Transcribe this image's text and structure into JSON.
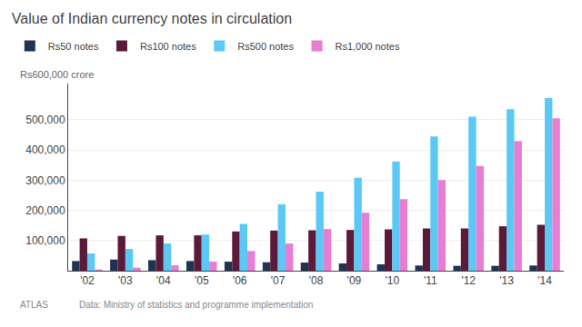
{
  "chart_data": {
    "type": "bar",
    "title": "Value of Indian currency notes in circulation",
    "ylabel": "Rs600,000 crore",
    "annotations": [
      "ATLAS",
      "Data: Ministry of statistics and programme implementation"
    ],
    "categories": [
      "'02",
      "'03",
      "'04",
      "'05",
      "'06",
      "'07",
      "'08",
      "'09",
      "'10",
      "'11",
      "'12",
      "'13",
      "'14"
    ],
    "series": [
      {
        "name": "Rs50 notes",
        "color": "#1f3352",
        "values": [
          32000,
          37000,
          35000,
          32000,
          30000,
          28000,
          27000,
          24000,
          21000,
          17000,
          16000,
          16000,
          17000
        ]
      },
      {
        "name": "Rs100 notes",
        "color": "#5c1a3a",
        "values": [
          107000,
          115000,
          117000,
          117000,
          130000,
          133000,
          134000,
          135000,
          137000,
          140000,
          140000,
          147000,
          152000
        ]
      },
      {
        "name": "Rs500 notes",
        "color": "#5bc8f5",
        "values": [
          57000,
          72000,
          90000,
          120000,
          155000,
          220000,
          262000,
          308000,
          362000,
          445000,
          510000,
          535000,
          572000
        ]
      },
      {
        "name": "Rs1,000 notes",
        "color": "#e87dd4",
        "values": [
          4000,
          10000,
          18000,
          30000,
          65000,
          90000,
          138000,
          192000,
          237000,
          300000,
          347000,
          430000,
          505000
        ]
      }
    ],
    "ylim": [
      0,
      620000
    ],
    "yticks": [
      {
        "value": 100000,
        "label": "100,000"
      },
      {
        "value": 200000,
        "label": "200,000"
      },
      {
        "value": 300000,
        "label": "300,000"
      },
      {
        "value": 400000,
        "label": "400,000"
      },
      {
        "value": 500000,
        "label": "500,000"
      }
    ],
    "grid": true
  }
}
